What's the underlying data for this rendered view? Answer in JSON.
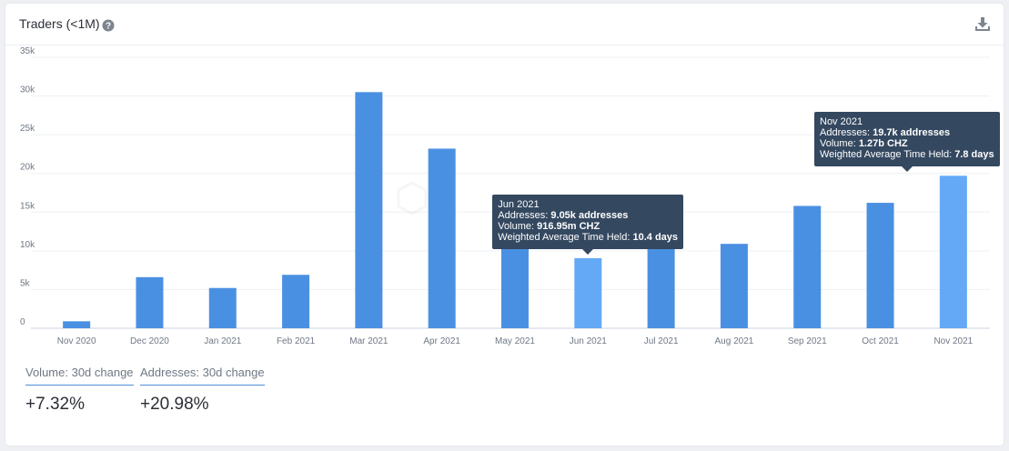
{
  "header": {
    "title": "Traders (<1M)",
    "help_icon": "question-circle-icon",
    "download_icon": "download-icon"
  },
  "colors": {
    "bar": "#4a90e2",
    "bar_highlight": "#64a9f5",
    "tooltip_bg": "#344860",
    "stat_underline": "#4c8fd6"
  },
  "chart_data": {
    "type": "bar",
    "categories": [
      "Nov 2020",
      "Dec 2020",
      "Jan 2021",
      "Feb 2021",
      "Mar 2021",
      "Apr 2021",
      "May 2021",
      "Jun 2021",
      "Jul 2021",
      "Aug 2021",
      "Sep 2021",
      "Oct 2021",
      "Nov 2021"
    ],
    "values": [
      900,
      6600,
      5200,
      6900,
      30500,
      23200,
      10400,
      9050,
      10700,
      10900,
      15800,
      16200,
      19700
    ],
    "highlighted": [
      "Jun 2021",
      "Nov 2021"
    ],
    "ylim": [
      0,
      35000
    ],
    "yticks": [
      0,
      5000,
      10000,
      15000,
      20000,
      25000,
      30000,
      35000
    ],
    "ytick_labels": [
      "0",
      "5k",
      "10k",
      "15k",
      "20k",
      "25k",
      "30k",
      "35k"
    ],
    "grid": true,
    "tooltips": [
      {
        "category": "Jun 2021",
        "title": "Jun 2021",
        "rows": [
          {
            "label": "Addresses: ",
            "value": "9.05k addresses"
          },
          {
            "label": "Volume: ",
            "value": "916.95m CHZ"
          },
          {
            "label": "Weighted Average Time Held: ",
            "value": "10.4 days"
          }
        ]
      },
      {
        "category": "Nov 2021",
        "title": "Nov 2021",
        "rows": [
          {
            "label": "Addresses: ",
            "value": "19.7k addresses"
          },
          {
            "label": "Volume: ",
            "value": "1.27b CHZ"
          },
          {
            "label": "Weighted Average Time Held: ",
            "value": "7.8 days"
          }
        ]
      }
    ]
  },
  "stats": [
    {
      "label": "Volume: 30d change",
      "value": "+7.32%"
    },
    {
      "label": "Addresses: 30d change",
      "value": "+20.98%"
    }
  ]
}
